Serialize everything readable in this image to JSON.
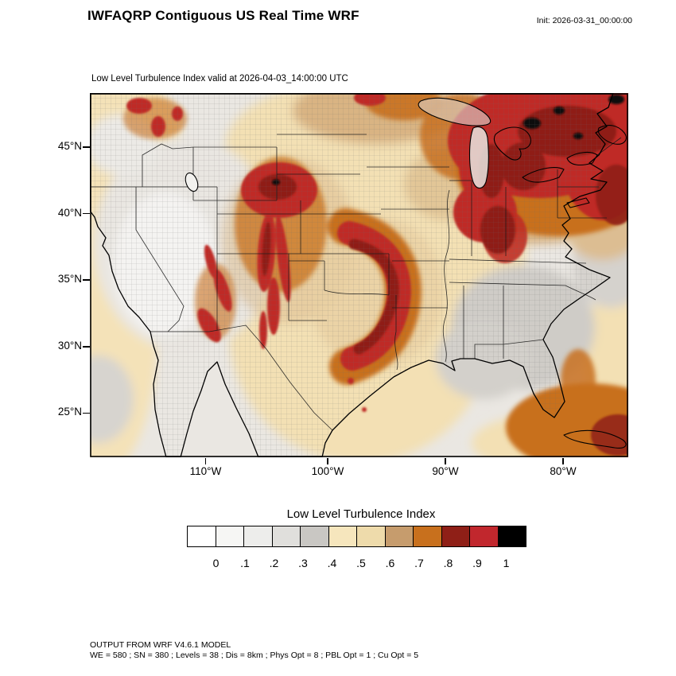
{
  "header": {
    "title": "IWFAQRP Contiguous US Real Time WRF",
    "init_label": "Init: 2026-03-31_00:00:00"
  },
  "map": {
    "subtitle": "Low Level Turbulence Index valid at 2026-04-03_14:00:00 UTC",
    "lat_ticks": [
      "45°N",
      "40°N",
      "35°N",
      "30°N",
      "25°N"
    ],
    "lon_ticks": [
      "110°W",
      "100°W",
      "90°W",
      "80°W"
    ]
  },
  "chart_data": {
    "type": "heatmap",
    "title": "Low Level Turbulence Index",
    "region": "Contiguous US",
    "valid_time": "2026-04-03_14:00:00 UTC",
    "init_time": "2026-03-31_00:00:00",
    "y_ticks": [
      "45°N",
      "40°N",
      "35°N",
      "30°N",
      "25°N"
    ],
    "x_ticks": [
      "110°W",
      "100°W",
      "90°W",
      "80°W"
    ],
    "colorbar": {
      "levels": [
        "0",
        ".1",
        ".2",
        ".3",
        ".4",
        ".5",
        ".6",
        ".7",
        ".8",
        ".9",
        "1"
      ],
      "colors": [
        "#ffffff",
        "#f6f6f4",
        "#ededeb",
        "#e0dfdc",
        "#c9c7c3",
        "#f6e6bd",
        "#eedbab",
        "#c69c6d",
        "#c8701d",
        "#8f1f17",
        "#c1272d",
        "#000000"
      ]
    },
    "regions": [
      {
        "area": "Great Lakes / Northeast US / New England",
        "index": "0.8–1.0, locally >1"
      },
      {
        "area": "Wyoming / Colorado Front Range streaks",
        "index": "0.8–1.0"
      },
      {
        "area": "Central Plains arc (Kansas–Oklahoma)",
        "index": "0.8–1.0"
      },
      {
        "area": "Ohio Valley / Appalachians",
        "index": "0.7–0.9"
      },
      {
        "area": "Gulf of Mexico near Florida and Cuba",
        "index": "0.7–0.9"
      },
      {
        "area": "Southeast US",
        "index": "0.2–0.4"
      },
      {
        "area": "West Coast / Great Basin",
        "index": "0.0–0.3"
      },
      {
        "area": "Texas and plains background",
        "index": "0.4–0.6"
      }
    ]
  },
  "footer": {
    "line1": "OUTPUT FROM WRF V4.6.1 MODEL",
    "line2": "WE = 580 ; SN = 380 ; Levels = 38 ; Dis = 8km ; Phys Opt = 8 ; PBL Opt = 1 ; Cu Opt = 5"
  }
}
